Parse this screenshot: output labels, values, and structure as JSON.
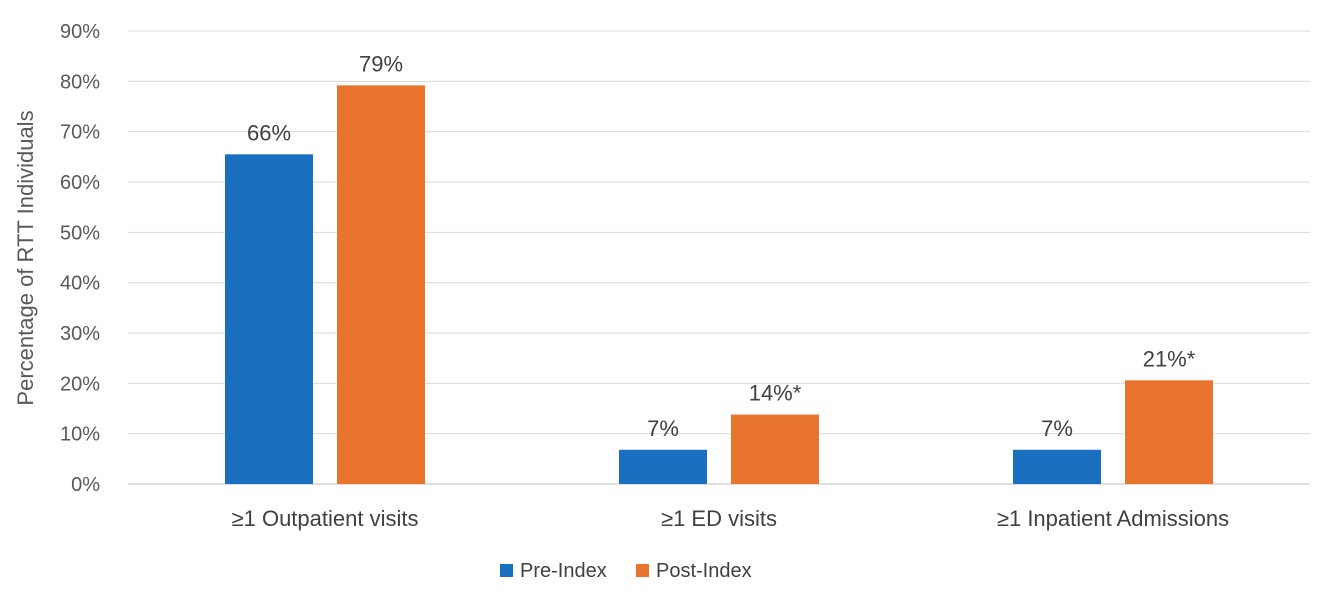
{
  "chart_data": {
    "type": "bar",
    "title": "",
    "xlabel": "",
    "ylabel": "Percentage of RTT Individuals",
    "ylim": [
      0,
      90
    ],
    "yticks": [
      0,
      10,
      20,
      30,
      40,
      50,
      60,
      70,
      80,
      90
    ],
    "ytick_labels": [
      "0%",
      "10%",
      "20%",
      "30%",
      "40%",
      "50%",
      "60%",
      "70%",
      "80%",
      "90%"
    ],
    "grid": true,
    "legend_position": "bottom",
    "categories": [
      "≥1 Outpatient visits",
      "≥1 ED visits",
      "≥1 Inpatient Admissions"
    ],
    "series": [
      {
        "name": "Pre-Index",
        "color": "#1a6fc0",
        "values": [
          65.5,
          6.8,
          6.8
        ],
        "labels": [
          "66%",
          "7%",
          "7%"
        ]
      },
      {
        "name": "Post-Index",
        "color": "#e8742e",
        "values": [
          79.2,
          13.8,
          20.6
        ],
        "labels": [
          "79%",
          "14%*",
          "21%*"
        ]
      }
    ]
  }
}
